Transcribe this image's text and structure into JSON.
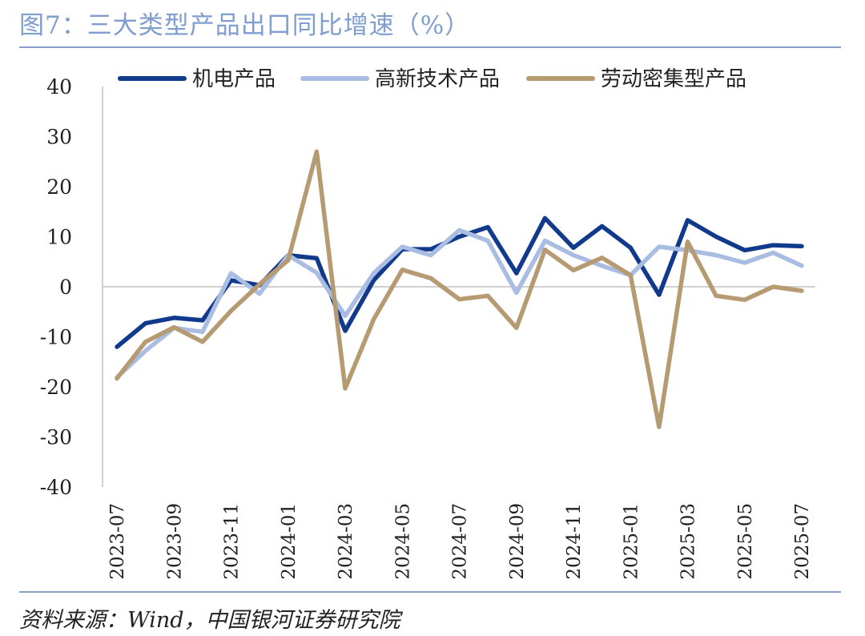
{
  "title": "图7：三大类型产品出口同比增速（%）",
  "source": "资料来源：Wind，中国银河证券研究院",
  "chart_data": {
    "type": "line",
    "title": "图7：三大类型产品出口同比增速（%）",
    "xlabel": "",
    "ylabel": "",
    "ylim": [
      -40,
      40
    ],
    "yticks": [
      40,
      30,
      20,
      10,
      0,
      -10,
      -20,
      -30,
      -40
    ],
    "x": [
      "2023-07",
      "2023-08",
      "2023-09",
      "2023-10",
      "2023-11",
      "2023-12",
      "2024-01",
      "2024-02",
      "2024-03",
      "2024-04",
      "2024-05",
      "2024-06",
      "2024-07",
      "2024-08",
      "2024-09",
      "2024-10",
      "2024-11",
      "2024-12",
      "2025-01",
      "2025-02",
      "2025-03",
      "2025-04",
      "2025-05",
      "2025-06",
      "2025-07"
    ],
    "xtick_labels": [
      "2023-07",
      "2023-09",
      "2023-11",
      "2024-01",
      "2024-03",
      "2024-05",
      "2024-07",
      "2024-09",
      "2024-11",
      "2025-01",
      "2025-03",
      "2025-05",
      "2025-07"
    ],
    "legend_position": "top",
    "grid": false,
    "series": [
      {
        "name": "机电产品",
        "color": "#123a8c",
        "values": [
          -12.0,
          -7.3,
          -6.2,
          -6.7,
          1.3,
          0.3,
          6.3,
          5.7,
          -8.8,
          1.3,
          7.5,
          7.5,
          10.0,
          11.9,
          2.7,
          13.7,
          7.8,
          12.1,
          7.8,
          -1.6,
          13.3,
          10.0,
          7.3,
          8.3,
          8.1
        ]
      },
      {
        "name": "高新技术产品",
        "color": "#a9bde3",
        "values": [
          -18.1,
          -12.8,
          -8.2,
          -9.0,
          2.7,
          -1.4,
          6.3,
          2.8,
          -5.8,
          2.7,
          8.0,
          6.3,
          11.3,
          9.2,
          -1.2,
          9.2,
          6.3,
          4.2,
          2.3,
          8.0,
          7.3,
          6.3,
          4.8,
          6.8,
          4.2
        ]
      },
      {
        "name": "劳动密集型产品",
        "color": "#b59a72",
        "values": [
          -18.3,
          -11.0,
          -8.1,
          -11.0,
          -4.8,
          0.5,
          5.3,
          27.0,
          -20.3,
          -6.5,
          3.4,
          1.7,
          -2.5,
          -1.8,
          -8.2,
          7.4,
          3.3,
          5.8,
          2.3,
          -28.0,
          9.0,
          -1.8,
          -2.6,
          0.0,
          -0.8
        ]
      }
    ]
  }
}
